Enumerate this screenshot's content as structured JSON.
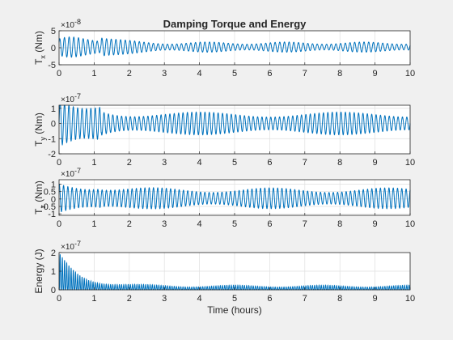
{
  "window": {
    "background": "#f0f0f0"
  },
  "chart_data": [
    {
      "type": "line",
      "title": "Damping Torque and Energy",
      "ylabel_main": "T",
      "ylabel_sub": "x",
      "ylabel_unit": " (Nm)",
      "xlabel": "",
      "xlim": [
        0,
        10
      ],
      "ylim": [
        -5,
        5
      ],
      "exponent_base": "×10",
      "exponent": "-8",
      "x_ticks": [
        "0",
        "1",
        "2",
        "3",
        "4",
        "5",
        "6",
        "7",
        "8",
        "9",
        "10"
      ],
      "y_ticks": [
        {
          "v": -5,
          "label": "-5"
        },
        {
          "v": 0,
          "label": "0"
        },
        {
          "v": 5,
          "label": "5"
        }
      ],
      "grid": true,
      "color": "#0072bd",
      "series": [
        {
          "envelope_initial": 2.5,
          "envelope_peak": 4.2,
          "envelope_steady": 1.5,
          "baseline": 0.2,
          "cycles_per_hour": 7.5,
          "beat_cycles_per_hour": 0.45,
          "phase": 0.6
        }
      ]
    },
    {
      "type": "line",
      "title": "",
      "ylabel_main": "T",
      "ylabel_sub": "y",
      "ylabel_unit": " (Nm)",
      "xlabel": "",
      "xlim": [
        0,
        10
      ],
      "ylim": [
        -2,
        1.2
      ],
      "exponent_base": "×10",
      "exponent": "-7",
      "x_ticks": [
        "0",
        "1",
        "2",
        "3",
        "4",
        "5",
        "6",
        "7",
        "8",
        "9",
        "10"
      ],
      "y_ticks": [
        {
          "v": -2,
          "label": "-2"
        },
        {
          "v": -1,
          "label": "-1"
        },
        {
          "v": 0,
          "label": "0"
        },
        {
          "v": 1,
          "label": "1"
        }
      ],
      "grid": true,
      "color": "#0072bd",
      "series": [
        {
          "envelope_initial": 1.5,
          "envelope_peak": 1.1,
          "envelope_steady": 0.75,
          "baseline": 0.0,
          "cycles_per_hour": 8.0,
          "beat_cycles_per_hour": 0.25,
          "phase": 0.0
        }
      ]
    },
    {
      "type": "line",
      "title": "",
      "ylabel_main": "T",
      "ylabel_sub": "z",
      "ylabel_unit": " (Nm)",
      "xlabel": "",
      "xlim": [
        0,
        10
      ],
      "ylim": [
        -1.1,
        1.3
      ],
      "exponent_base": "×10",
      "exponent": "-7",
      "x_ticks": [
        "0",
        "1",
        "2",
        "3",
        "4",
        "5",
        "6",
        "7",
        "8",
        "9",
        "10"
      ],
      "y_ticks": [
        {
          "v": -1,
          "label": "-1"
        },
        {
          "v": -0.5,
          "label": "-0.5"
        },
        {
          "v": 0,
          "label": "0"
        },
        {
          "v": 0.5,
          "label": "0.5"
        },
        {
          "v": 1,
          "label": "1"
        }
      ],
      "grid": true,
      "color": "#0072bd",
      "series": [
        {
          "envelope_initial": 1.1,
          "envelope_peak": 1.0,
          "envelope_steady": 0.7,
          "baseline": 0.05,
          "cycles_per_hour": 8.2,
          "beat_cycles_per_hour": 0.3,
          "phase": 1.2
        }
      ]
    },
    {
      "type": "line",
      "title": "",
      "ylabel_main": "Energy (J)",
      "ylabel_sub": "",
      "ylabel_unit": "",
      "xlabel": "Time (hours)",
      "xlim": [
        0,
        10
      ],
      "ylim": [
        0,
        2
      ],
      "exponent_base": "×10",
      "exponent": "-7",
      "x_ticks": [
        "0",
        "1",
        "2",
        "3",
        "4",
        "5",
        "6",
        "7",
        "8",
        "9",
        "10"
      ],
      "y_ticks": [
        {
          "v": 0,
          "label": "0"
        },
        {
          "v": 1,
          "label": "1"
        },
        {
          "v": 2,
          "label": "2"
        }
      ],
      "grid": true,
      "color": "#0072bd",
      "series": [
        {
          "peak_initial": 2.0,
          "peak_mid": 0.4,
          "peak_steady": 0.25,
          "cycles_per_hour": 8.0
        }
      ]
    }
  ]
}
